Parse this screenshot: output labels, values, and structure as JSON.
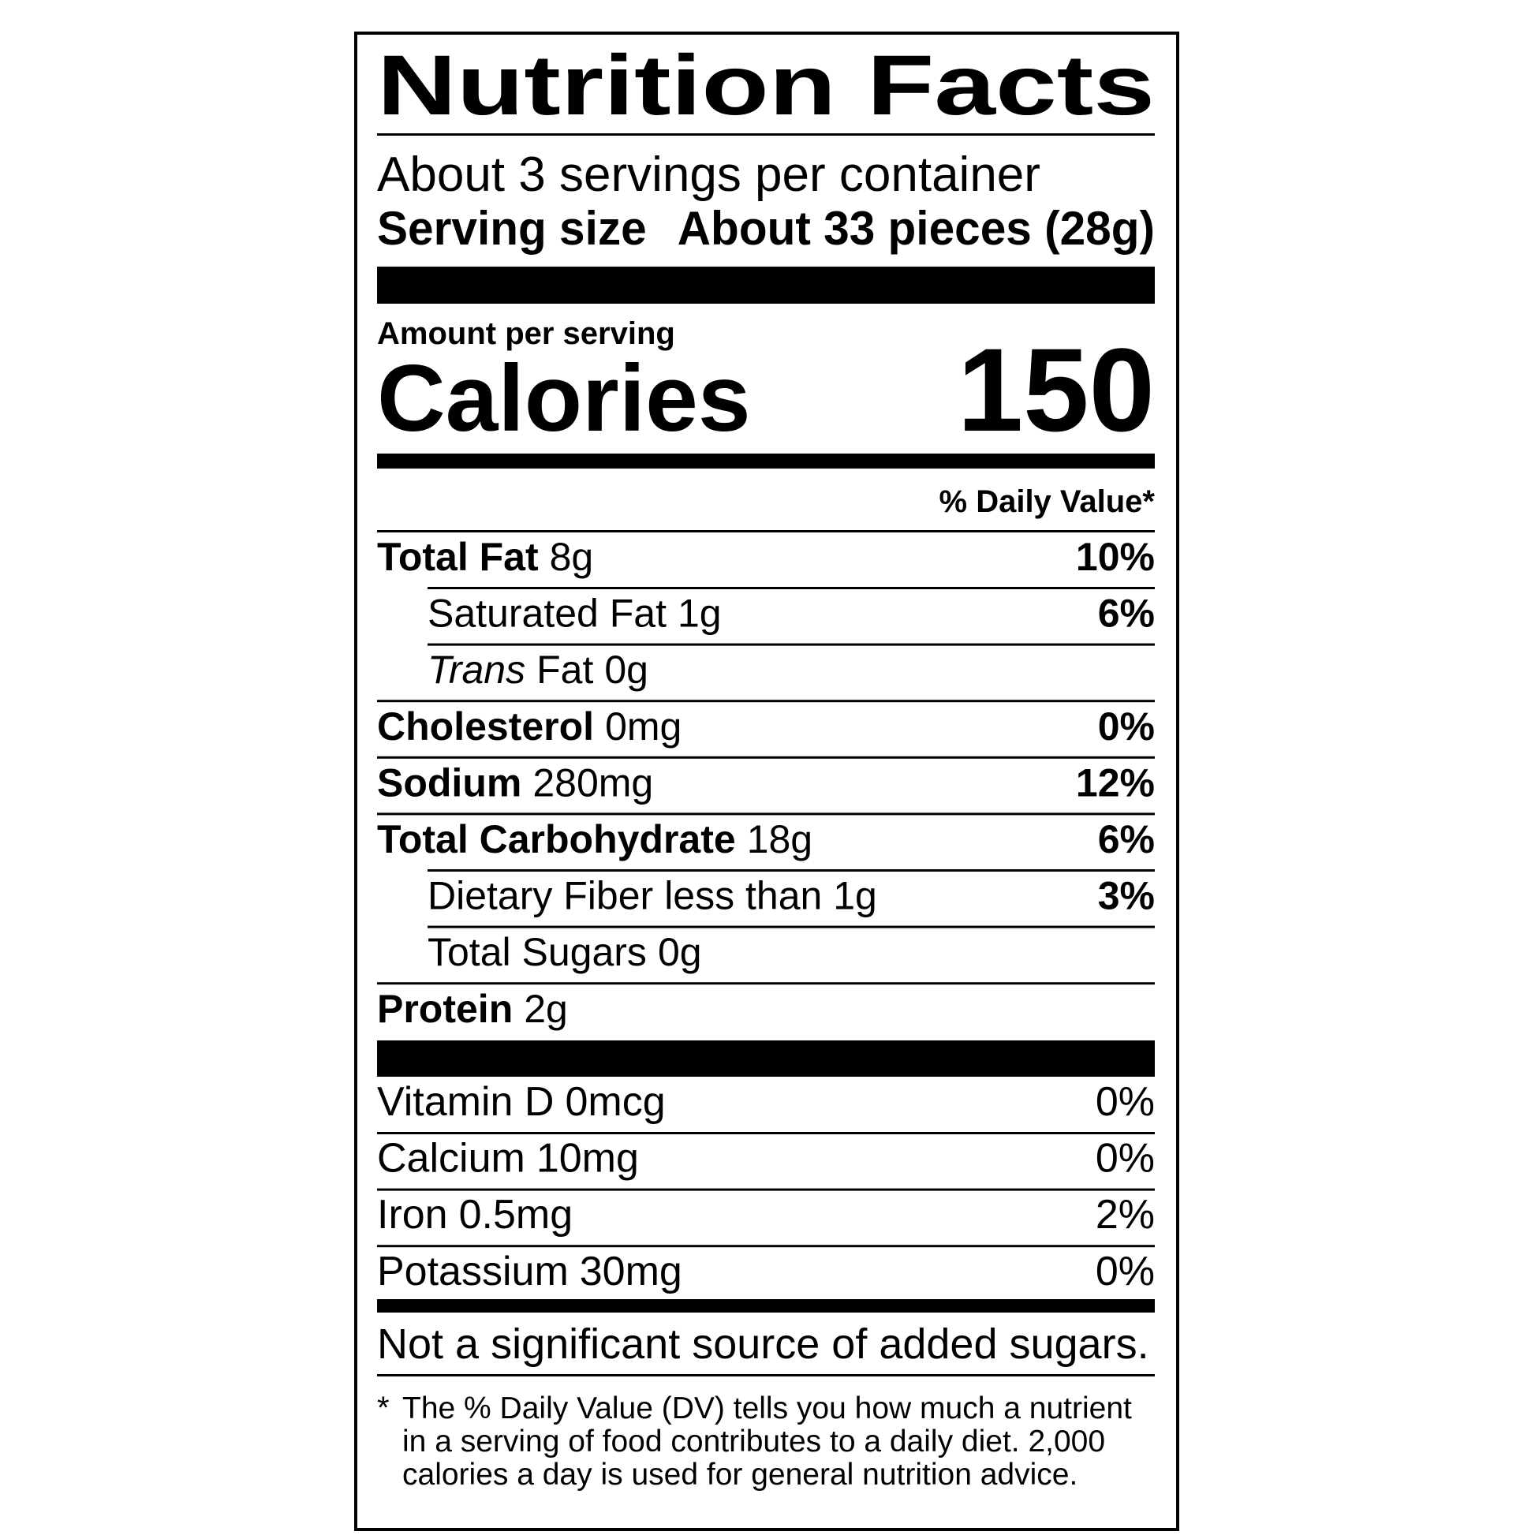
{
  "title": "Nutrition Facts",
  "servings": "About 3 servings per container",
  "serving_size": {
    "label": "Serving size",
    "value": "About 33 pieces (28g)"
  },
  "amount_per_serving": "Amount per serving",
  "calories": {
    "label": "Calories",
    "value": "150"
  },
  "daily_value_header": "% Daily Value*",
  "nutrients": [
    {
      "name": "Total Fat",
      "amount": "8g",
      "dv": "10%"
    },
    {
      "name": "Saturated Fat",
      "amount": "1g",
      "dv": "6%"
    },
    {
      "name_italic": "Trans",
      "name": "Fat",
      "amount": "0g"
    },
    {
      "name": "Cholesterol",
      "amount": "0mg",
      "dv": "0%"
    },
    {
      "name": "Sodium",
      "amount": "280mg",
      "dv": "12%"
    },
    {
      "name": "Total Carbohydrate",
      "amount": "18g",
      "dv": "6%"
    },
    {
      "name": "Dietary Fiber",
      "amount": "less than 1g",
      "dv": "3%"
    },
    {
      "name": "Total Sugars",
      "amount": "0g"
    },
    {
      "name": "Protein",
      "amount": "2g"
    }
  ],
  "vitamins": [
    {
      "name": "Vitamin D",
      "amount": "0mcg",
      "dv": "0%"
    },
    {
      "name": "Calcium",
      "amount": "10mg",
      "dv": "0%"
    },
    {
      "name": "Iron",
      "amount": "0.5mg",
      "dv": "2%"
    },
    {
      "name": "Potassium",
      "amount": "30mg",
      "dv": "0%"
    }
  ],
  "added_sugars_note": "Not a significant source of added sugars.",
  "footnote": {
    "marker": "*",
    "lines": [
      "The % Daily Value (DV) tells you how much a nutrient",
      "in a serving of food contributes to a daily diet. 2,000",
      "calories a day is used for general nutrition advice."
    ]
  }
}
